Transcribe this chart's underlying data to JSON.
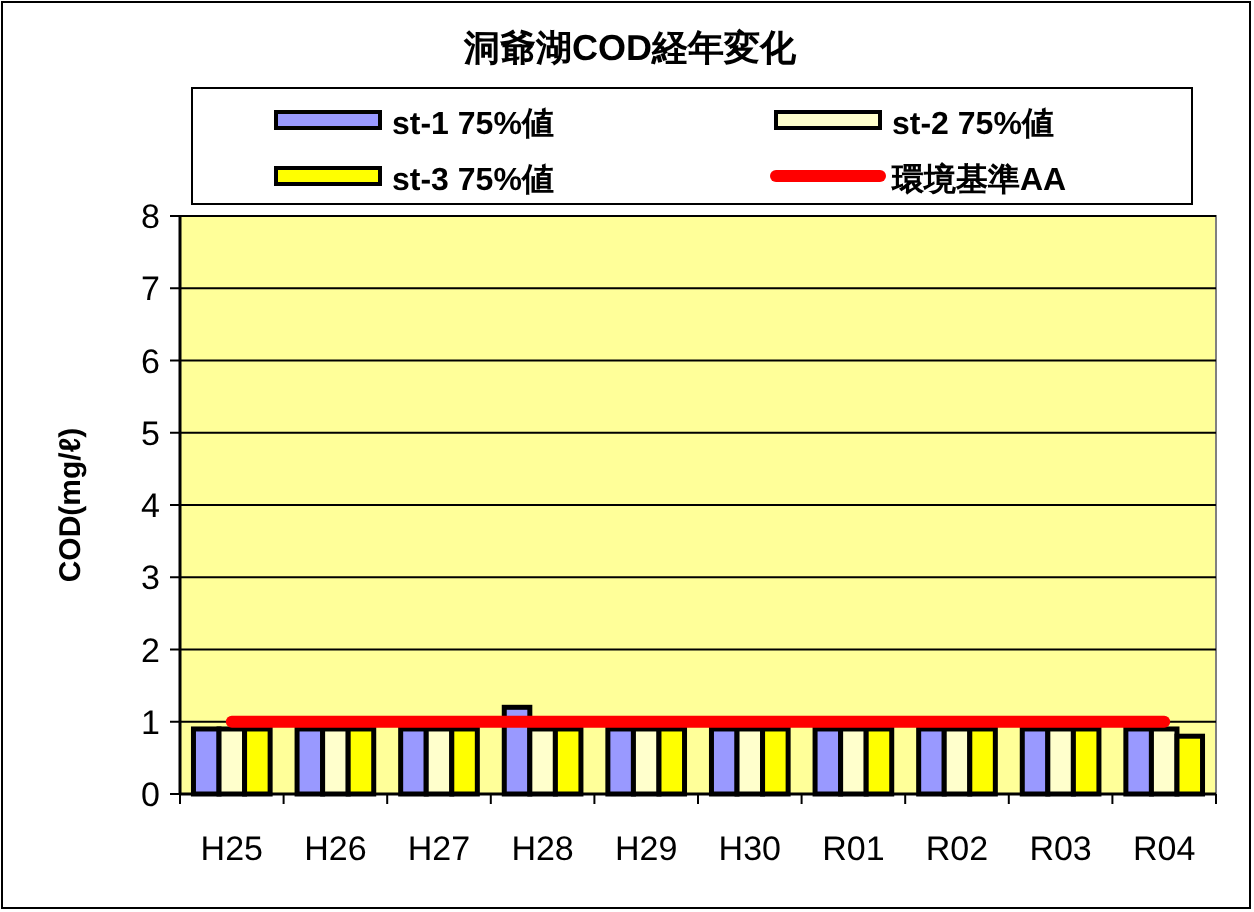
{
  "chart_data": {
    "type": "bar",
    "title": "洞爺湖COD経年変化",
    "ylabel": "COD(mg/ℓ)",
    "categories": [
      "H25",
      "H26",
      "H27",
      "H28",
      "H29",
      "H30",
      "R01",
      "R02",
      "R03",
      "R04"
    ],
    "series": [
      {
        "name": "st-1 75%値",
        "color": "#9999ff",
        "values": [
          0.9,
          0.9,
          0.9,
          1.2,
          0.9,
          0.9,
          0.9,
          0.9,
          0.9,
          0.9
        ]
      },
      {
        "name": "st-2 75%値",
        "color": "#ffffcc",
        "values": [
          0.9,
          0.9,
          0.9,
          0.9,
          0.9,
          0.9,
          0.9,
          0.9,
          0.9,
          0.9
        ]
      },
      {
        "name": "st-3 75%値",
        "color": "#ffff00",
        "values": [
          0.9,
          0.9,
          0.9,
          0.9,
          0.9,
          0.9,
          0.9,
          0.9,
          0.9,
          0.8
        ]
      },
      {
        "name": "環境基準AA",
        "color": "#ff0000",
        "type": "line",
        "values": [
          1,
          1,
          1,
          1,
          1,
          1,
          1,
          1,
          1,
          1
        ]
      }
    ],
    "ylim": [
      0,
      8
    ],
    "yticks": [
      0,
      1,
      2,
      3,
      4,
      5,
      6,
      7,
      8
    ],
    "grid": "y",
    "legend": "top"
  }
}
